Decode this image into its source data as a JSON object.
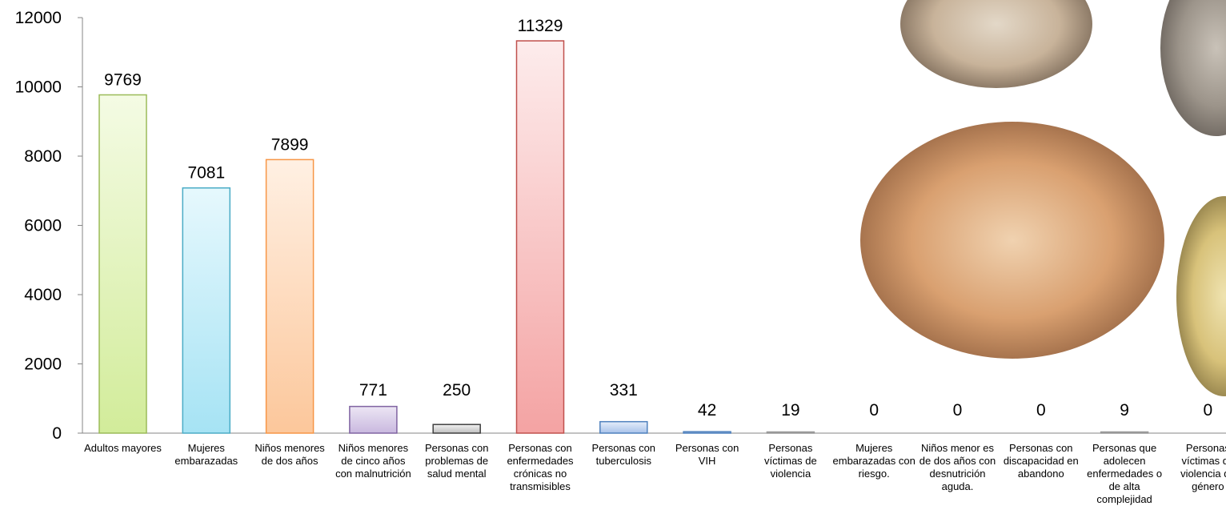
{
  "chart_data": {
    "type": "bar",
    "title": "",
    "xlabel": "",
    "ylabel": "",
    "ylim": [
      0,
      12000
    ],
    "yticks": [
      0,
      2000,
      4000,
      6000,
      8000,
      10000,
      12000
    ],
    "grid": false,
    "legend": "none",
    "categories": [
      "Adultos mayores",
      "Mujeres embarazadas",
      "Niños menores de dos años",
      "Niños menores de cinco años con malnutrición",
      "Personas con problemas de salud mental",
      "Personas con enfermedades crónicas no transmisibles",
      "Personas con tuberculosis",
      "Personas con VIH",
      "Personas víctimas de violencia",
      "Mujeres embarazadas con riesgo.",
      "Niños menor es de dos años con desnutrición aguda.",
      "Personas con discapacidad en abandono",
      "Personas que adolecen enfermedades o de alta complejidad",
      "Personas víctimas de violencia de género"
    ],
    "values": [
      9769,
      7081,
      7899,
      771,
      250,
      11329,
      331,
      42,
      19,
      0,
      0,
      0,
      9,
      0
    ],
    "data_labels": [
      "9769",
      "7081",
      "7899",
      "771",
      "250",
      "11329",
      "331",
      "42",
      "19",
      "0",
      "0",
      "0",
      "9",
      "0"
    ],
    "bar_styles": [
      {
        "fill_top": "#f4fbe4",
        "fill_bottom": "#d2ec9a",
        "stroke": "#9bbb59"
      },
      {
        "fill_top": "#e6f8fd",
        "fill_bottom": "#a6e3f4",
        "stroke": "#4bacc6"
      },
      {
        "fill_top": "#fff0e3",
        "fill_bottom": "#fcc79b",
        "stroke": "#f79646"
      },
      {
        "fill_top": "#ece6f4",
        "fill_bottom": "#c9b8df",
        "stroke": "#8064a2"
      },
      {
        "fill_top": "#f2f2f2",
        "fill_bottom": "#bfbfbf",
        "stroke": "#404040"
      },
      {
        "fill_top": "#fdecec",
        "fill_bottom": "#f4a3a3",
        "stroke": "#c0504d"
      },
      {
        "fill_top": "#e6eefa",
        "fill_bottom": "#a8c2ea",
        "stroke": "#4f81bd"
      },
      {
        "fill_top": "#c9d9f0",
        "fill_bottom": "#7ea0d0",
        "stroke": "#4f81bd"
      },
      {
        "fill_top": "#ffffff",
        "fill_bottom": "#dddddd",
        "stroke": "#999999"
      },
      {
        "fill_top": "#ffffff",
        "fill_bottom": "#dddddd",
        "stroke": "#999999"
      },
      {
        "fill_top": "#ffffff",
        "fill_bottom": "#dddddd",
        "stroke": "#999999"
      },
      {
        "fill_top": "#ffffff",
        "fill_bottom": "#dddddd",
        "stroke": "#999999"
      },
      {
        "fill_top": "#ffffff",
        "fill_bottom": "#dddddd",
        "stroke": "#999999"
      },
      {
        "fill_top": "#ffffff",
        "fill_bottom": "#dddddd",
        "stroke": "#999999"
      }
    ],
    "axis_color": "#868686"
  },
  "photos": [
    {
      "name": "vaccination-photo-top-left"
    },
    {
      "name": "photo-top-right"
    },
    {
      "name": "vaccination-photo-center"
    },
    {
      "name": "photo-right-edge"
    }
  ]
}
